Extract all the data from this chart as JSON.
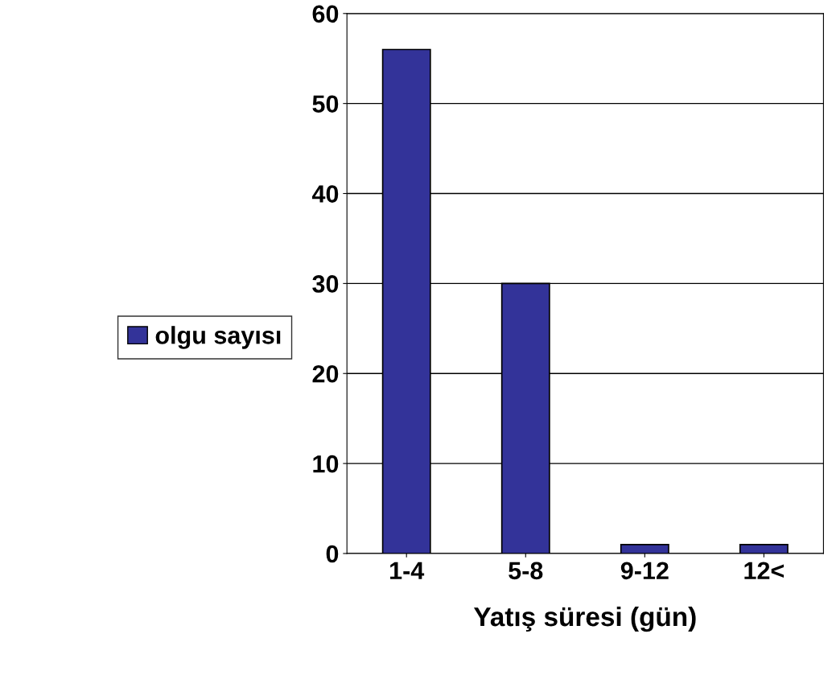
{
  "chart_data": {
    "type": "bar",
    "xlabel": "Yatış süresi (gün)",
    "categories": [
      "1-4",
      "5-8",
      "9-12",
      "12<"
    ],
    "series": [
      {
        "name": "olgu sayısı",
        "color": "#333399",
        "values": [
          56,
          30,
          1,
          1
        ]
      }
    ],
    "ylim": [
      0,
      60
    ],
    "yticks": [
      0,
      10,
      20,
      30,
      40,
      50,
      60
    ],
    "grid": "y",
    "legend": "left"
  }
}
